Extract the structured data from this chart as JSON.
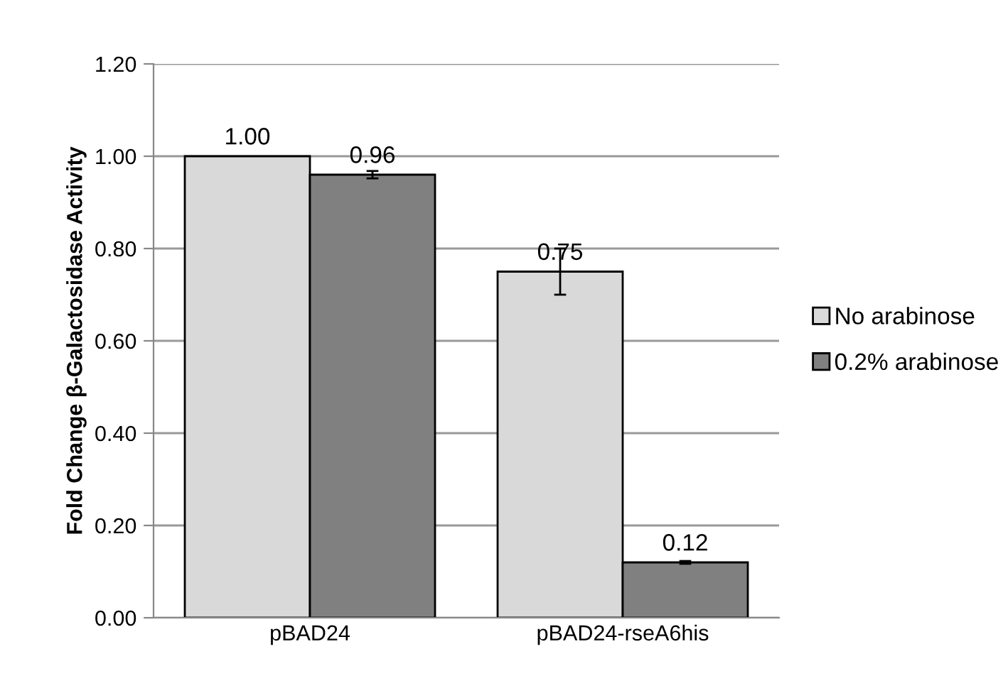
{
  "chart_data": {
    "type": "bar",
    "ylabel": "Fold Change β-Galactosidase Activity",
    "categories": [
      "pBAD24",
      "pBAD24-rseA6his"
    ],
    "series": [
      {
        "name": "No arabinose",
        "color": "#d9d9d9",
        "values": [
          1.0,
          0.75
        ],
        "value_labels": [
          "1.00",
          "0.75"
        ],
        "errors": [
          null,
          0.05
        ]
      },
      {
        "name": "0.2% arabinose",
        "color": "#808080",
        "values": [
          0.96,
          0.12
        ],
        "value_labels": [
          "0.96",
          "0.12"
        ],
        "errors": [
          0.008,
          0.003
        ]
      }
    ],
    "ylim": [
      0,
      1.2
    ],
    "yticks": [
      {
        "value": 0,
        "label": "0.00"
      },
      {
        "value": 0.2,
        "label": "0.20"
      },
      {
        "value": 0.4,
        "label": "0.40"
      },
      {
        "value": 0.6,
        "label": "0.60"
      },
      {
        "value": 0.8,
        "label": "0.80"
      },
      {
        "value": 1.0,
        "label": "1.00"
      },
      {
        "value": 1.2,
        "label": "1.20"
      }
    ],
    "grid": "y",
    "legend": "right"
  }
}
